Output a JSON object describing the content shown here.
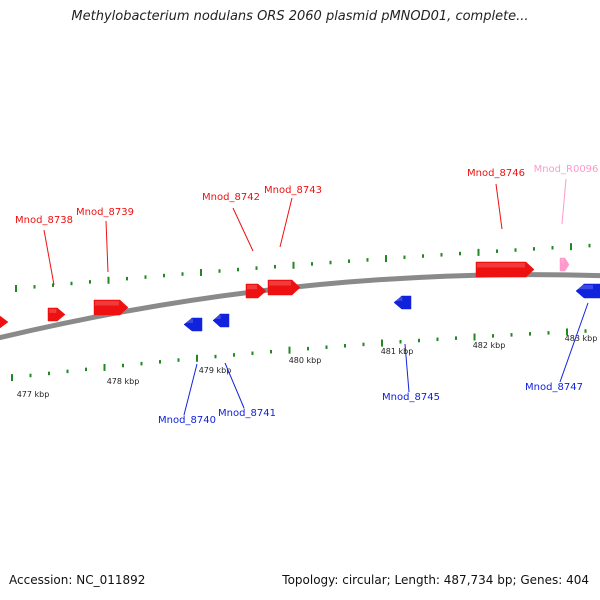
{
  "title": "Methylobacterium nodulans ORS 2060 plasmid pMNOD01, complete...",
  "footer": {
    "accession": "Accession: NC_011892",
    "summary": "Topology: circular; Length: 487,734 bp; Genes: 404"
  },
  "colors": {
    "forward_gene": "#ee1111",
    "reverse_gene": "#1122dd",
    "rna_gene": "#ff99cc",
    "backbone": "#8a8a8a",
    "tick": "#228822",
    "scale_label": "#222222"
  },
  "scale_labels": [
    {
      "kbp": 477,
      "label": "477 kbp"
    },
    {
      "kbp": 478,
      "label": "478 kbp"
    },
    {
      "kbp": 479,
      "label": "479 kbp"
    },
    {
      "kbp": 480,
      "label": "480 kbp"
    },
    {
      "kbp": 481,
      "label": "481 kbp"
    },
    {
      "kbp": 482,
      "label": "482 kbp"
    },
    {
      "kbp": 483,
      "label": "483 kbp"
    }
  ],
  "genes": [
    {
      "name": "Mnod_8738",
      "strand": "forward",
      "type": "protein"
    },
    {
      "name": "Mnod_8739",
      "strand": "forward",
      "type": "protein"
    },
    {
      "name": "Mnod_8740",
      "strand": "reverse",
      "type": "protein"
    },
    {
      "name": "Mnod_8741",
      "strand": "reverse",
      "type": "protein"
    },
    {
      "name": "Mnod_8742",
      "strand": "forward",
      "type": "protein"
    },
    {
      "name": "Mnod_8743",
      "strand": "forward",
      "type": "protein"
    },
    {
      "name": "Mnod_8745",
      "strand": "reverse",
      "type": "protein"
    },
    {
      "name": "Mnod_8746",
      "strand": "forward",
      "type": "protein"
    },
    {
      "name": "Mnod_R0096",
      "strand": "forward",
      "type": "rna"
    },
    {
      "name": "Mnod_8747",
      "strand": "reverse",
      "type": "protein"
    }
  ]
}
